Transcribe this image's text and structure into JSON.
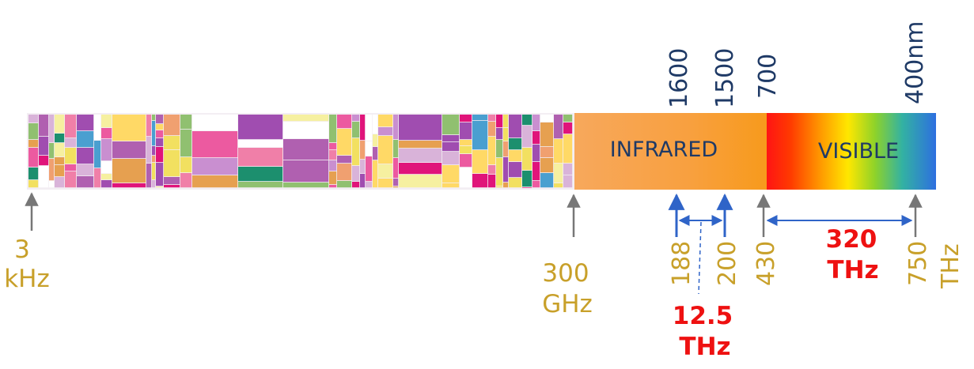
{
  "bands": {
    "infrared": "INFRARED",
    "visible": "VISIBLE"
  },
  "wavelength_labels": [
    "1600",
    "1500",
    "700",
    "400nm"
  ],
  "frequency_labels": {
    "low": [
      "3",
      "kHz"
    ],
    "mid": [
      "300",
      "GHz"
    ],
    "ir_low": "188",
    "ir_high": "200",
    "vis_low": "430",
    "vis_high": "750",
    "unit": "THz"
  },
  "bandwidths": {
    "telecom": [
      "12.5",
      "THz"
    ],
    "visible": [
      "320",
      "THz"
    ]
  },
  "colors": {
    "gold_text": "#c8a02a",
    "navy_text": "#1f3a66",
    "red_text": "#ee1111",
    "arrow_blue": "#2f64c8",
    "tick_gray": "#777777"
  }
}
